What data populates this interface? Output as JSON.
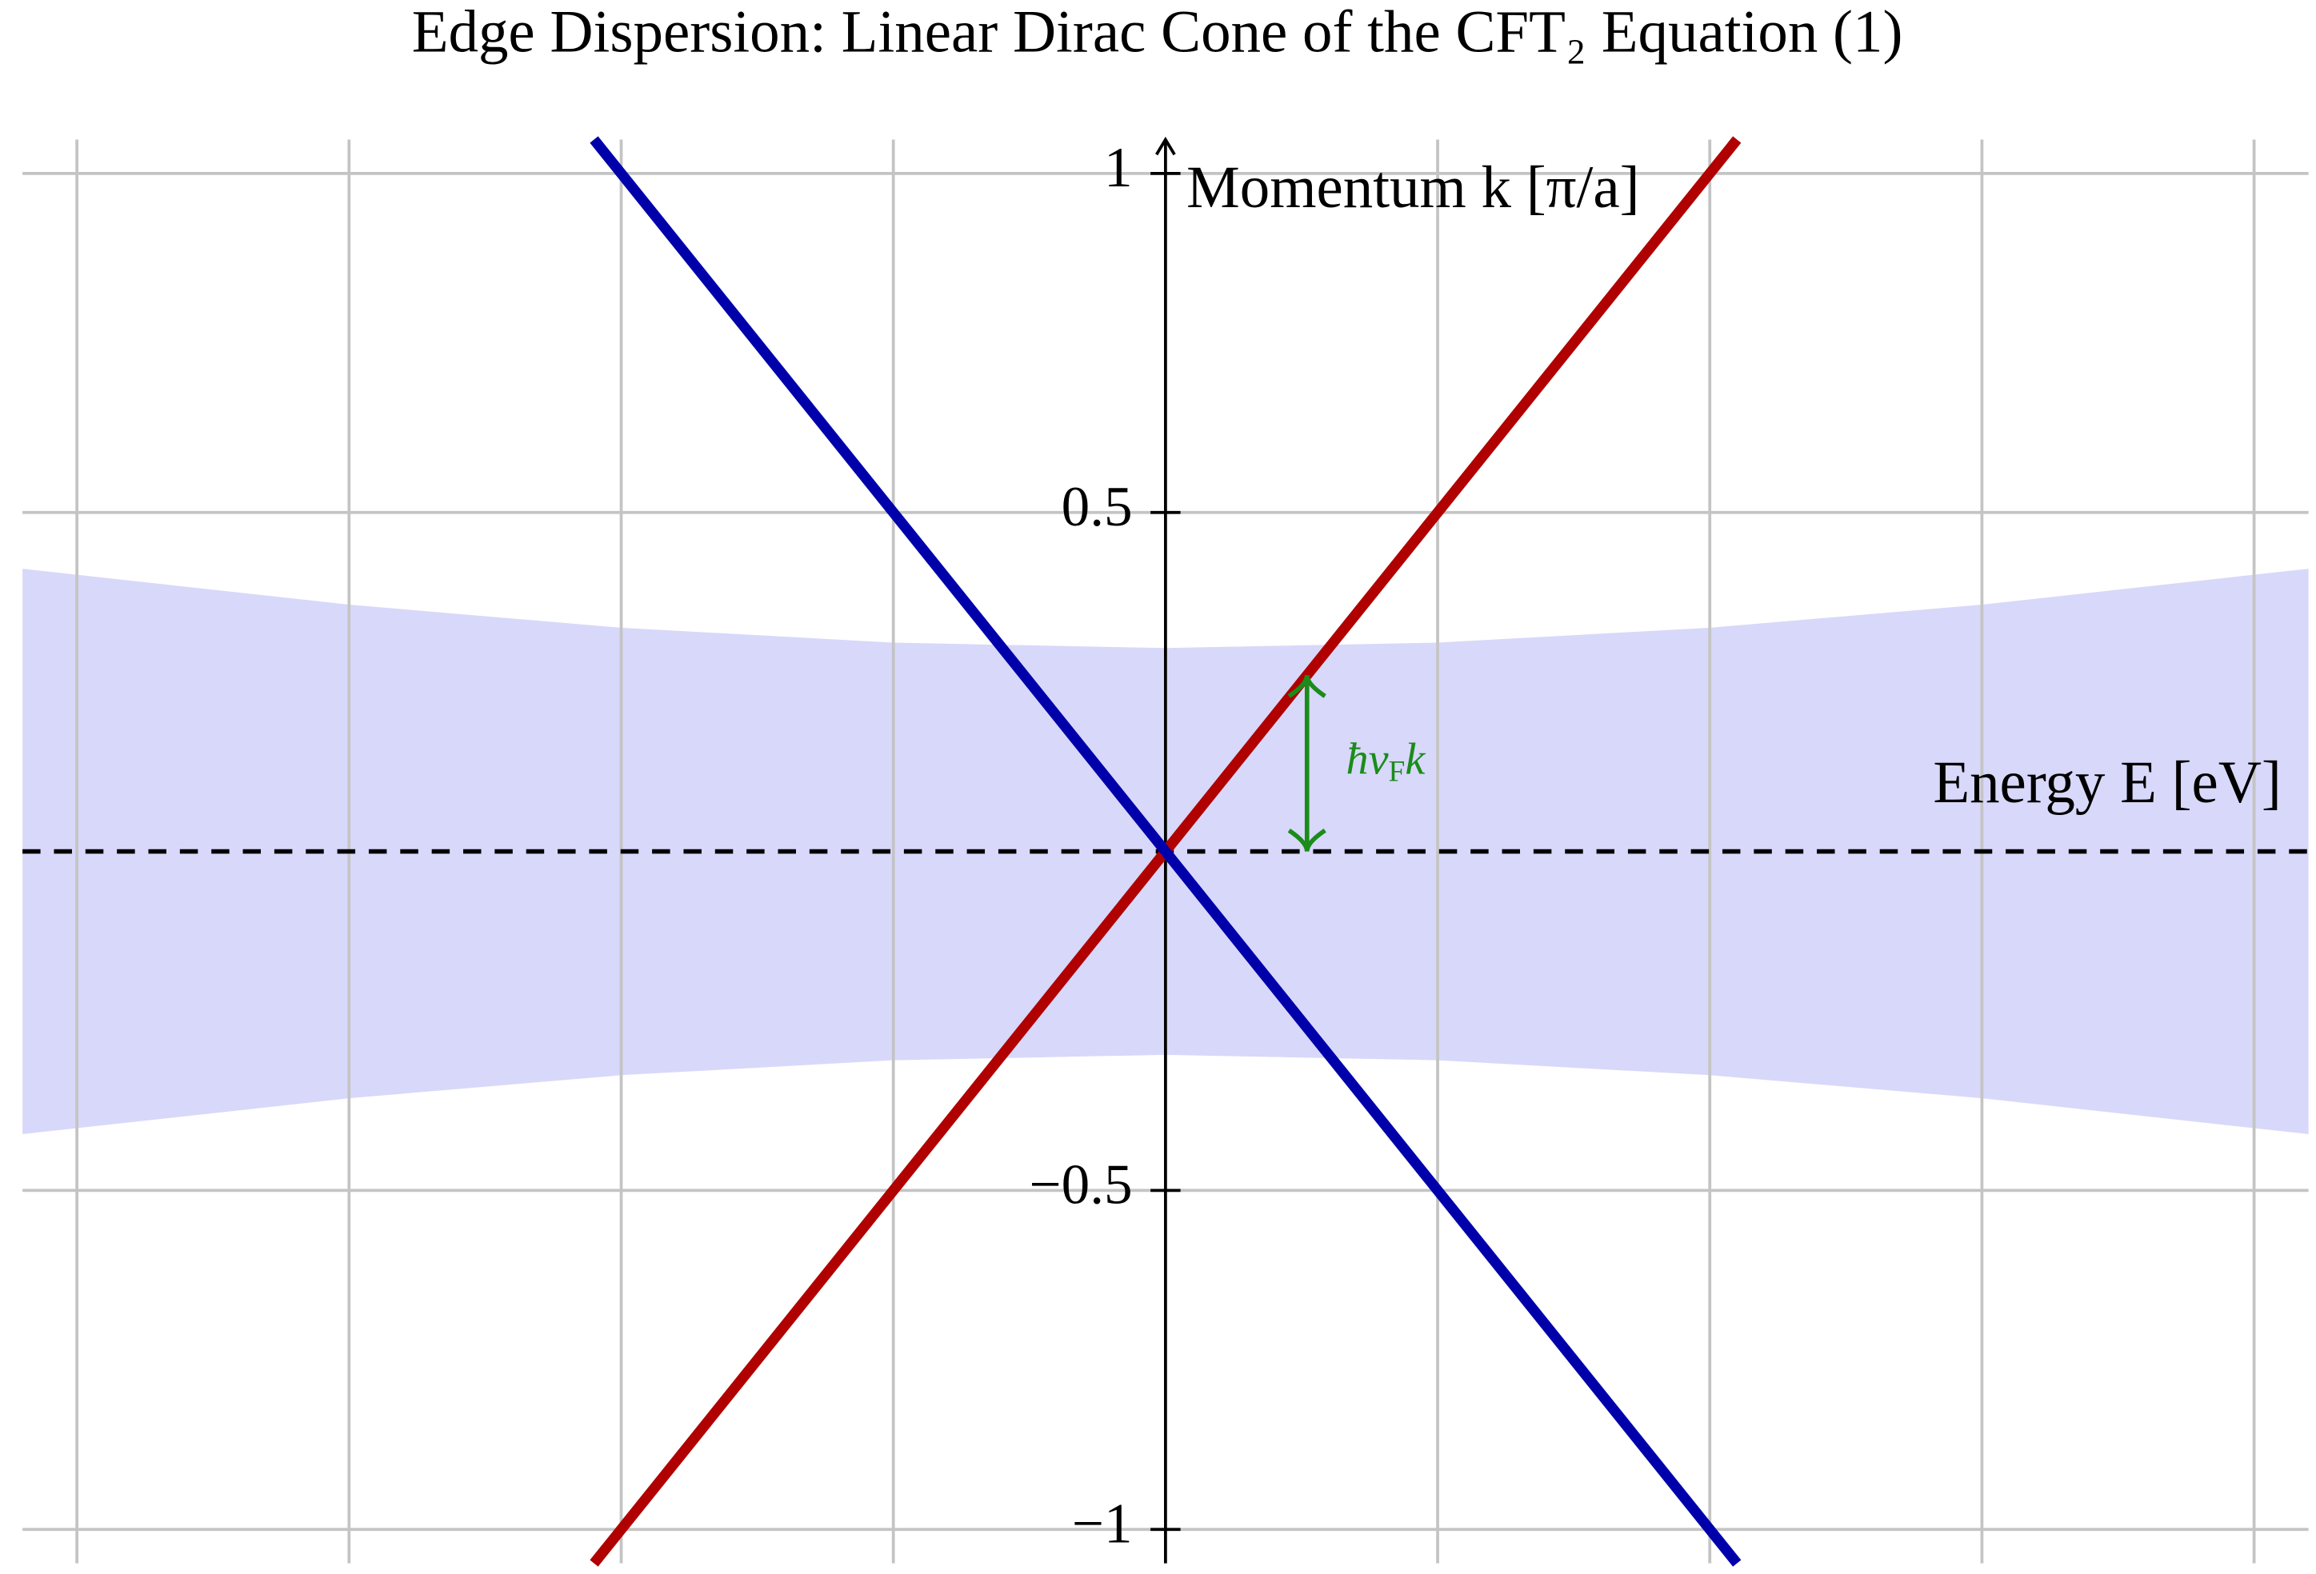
{
  "chart_data": {
    "type": "line",
    "title": "Edge Dispersion: Linear Dirac Cone of the CFT₂ Equation (1)",
    "xlabel": "Energy E [eV]",
    "ylabel": "Momentum k [π/a]",
    "xlim": [
      -2.1,
      2.1
    ],
    "ylim": [
      -1.05,
      1.05
    ],
    "xticks": [
      -2,
      -1.5,
      -1,
      -0.5,
      0,
      0.5,
      1,
      1.5,
      2
    ],
    "yticks": [
      {
        "value": -1,
        "label": "−1"
      },
      {
        "value": -0.5,
        "label": "−0.5"
      },
      0.5,
      1
    ],
    "grid": true,
    "band": {
      "color": "#d8d8fa",
      "x": [
        -2.1,
        -1.5,
        -1,
        -0.5,
        0,
        0.5,
        1,
        1.5,
        2.1
      ],
      "upper": [
        0.417,
        0.364,
        0.33,
        0.308,
        0.3,
        0.308,
        0.33,
        0.364,
        0.417
      ],
      "lower": [
        -0.417,
        -0.364,
        -0.33,
        -0.308,
        -0.3,
        -0.308,
        -0.33,
        -0.364,
        -0.417
      ]
    },
    "series": [
      {
        "color": "#b00000",
        "x": [
          -1.05,
          1.05
        ],
        "values": [
          -1.05,
          1.05
        ]
      },
      {
        "color": "#0000aa",
        "x": [
          -1.05,
          1.05
        ],
        "values": [
          1.05,
          -1.05
        ]
      }
    ],
    "annotation": {
      "text": [
        "ħv",
        "F",
        "k"
      ],
      "color": "#1a8c1a",
      "x": 0.26,
      "from": 0,
      "to": 0.26
    }
  }
}
